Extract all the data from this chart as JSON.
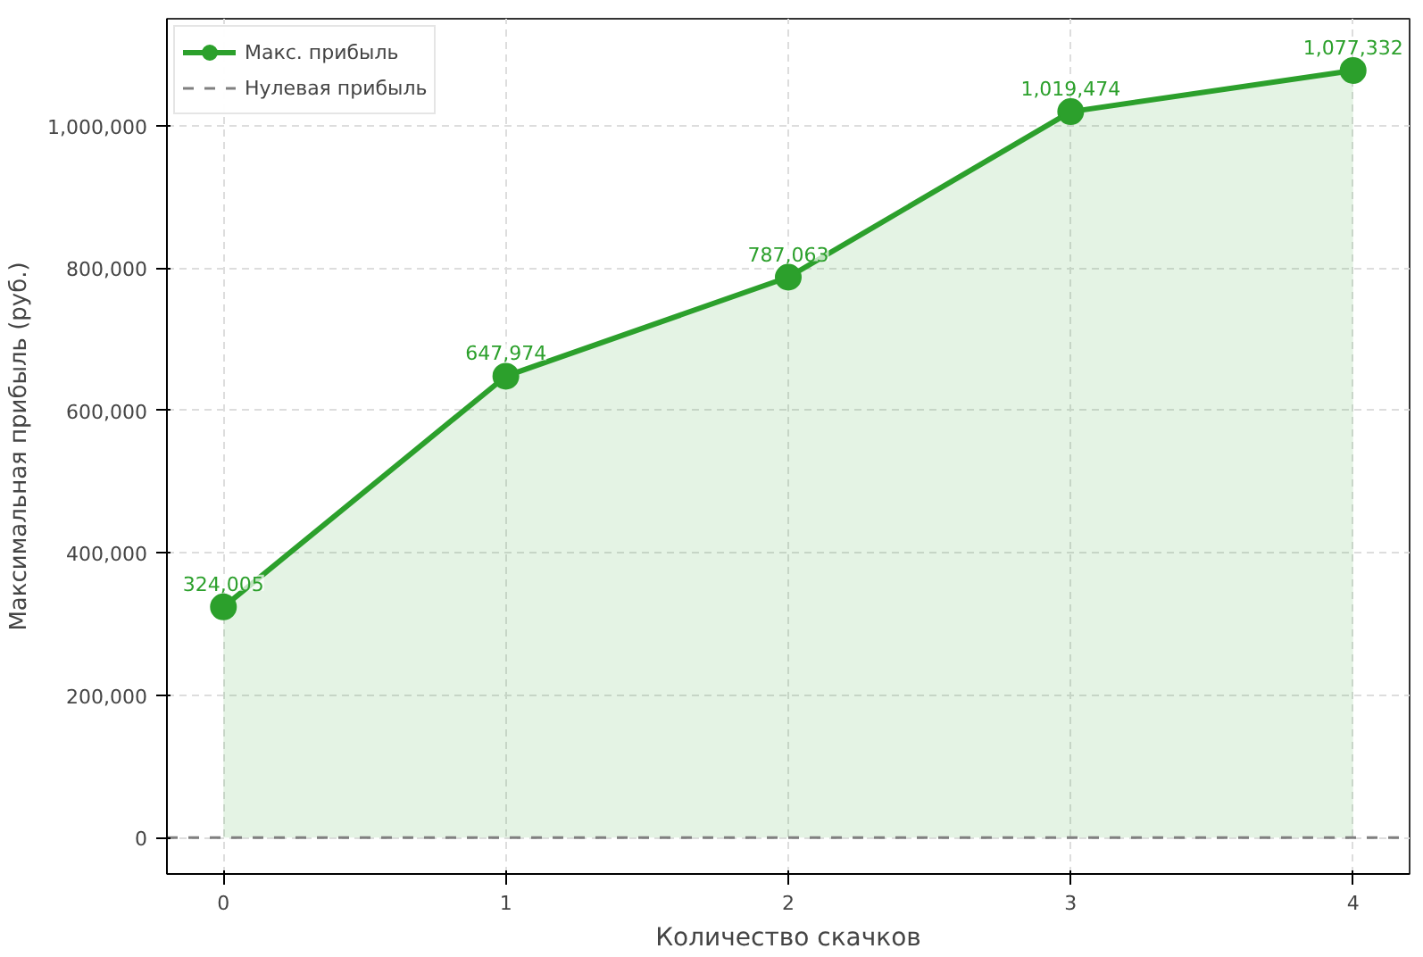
{
  "chart_data": {
    "type": "area",
    "xlabel": "Количество скачков",
    "ylabel": "Максимальная прибыль (руб.)",
    "x": [
      0,
      1,
      2,
      3,
      4
    ],
    "series": [
      {
        "name": "Макс. прибыль",
        "color": "#2ca02c",
        "values": [
          324005,
          647974,
          787063,
          1019474,
          1077332
        ]
      }
    ],
    "value_labels": [
      "324,005",
      "647,974",
      "787,063",
      "1,019,474",
      "1,077,332"
    ],
    "marker": "circle",
    "line_style": "solid",
    "grid": true,
    "legend": "top left",
    "xlim": [
      -0.2,
      4.2
    ],
    "ylim": [
      -51000,
      1150000
    ],
    "xticks": [
      0,
      1,
      2,
      3,
      4
    ],
    "yticks": [
      {
        "value": 0,
        "label": "0"
      },
      {
        "value": 200000,
        "label": "200,000"
      },
      {
        "value": 400000,
        "label": "400,000"
      },
      {
        "value": 600000,
        "label": "600,000"
      },
      {
        "value": 800000,
        "label": "800,000"
      },
      {
        "value": 1000000,
        "label": "1,000,000"
      }
    ],
    "ref_lines": [
      {
        "axis": "y",
        "value": 0,
        "label": "Нулевая прибыль",
        "color": "#808080",
        "line_style": "dashed"
      }
    ]
  }
}
